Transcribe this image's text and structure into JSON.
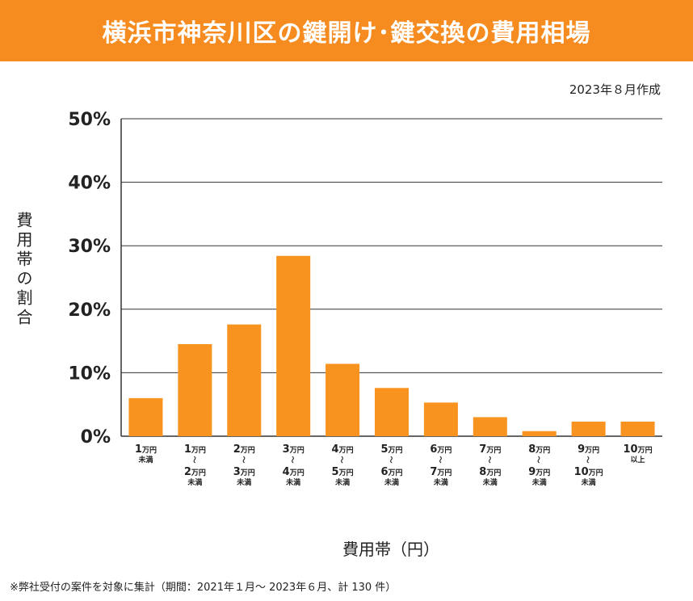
{
  "header": {
    "title": "横浜市神奈川区の鍵開け･鍵交換の費用相場",
    "created": "2023年８月作成"
  },
  "axis": {
    "ylabel": "費用帯の割合",
    "xlabel": "費用帯（円）"
  },
  "footnote": "※弊社受付の案件を対象に集計（期間：2021年１月～ 2023年６月、計 130 件）",
  "colors": {
    "bar": "#f7931e",
    "banner": "#f68b1f",
    "grid": "#333333"
  },
  "chart_data": {
    "type": "bar",
    "title": "横浜市神奈川区の鍵開け･鍵交換の費用相場",
    "xlabel": "費用帯（円）",
    "ylabel": "費用帯の割合",
    "ylim": [
      0,
      50
    ],
    "yticks": [
      "0%",
      "10%",
      "20%",
      "30%",
      "40%",
      "50%"
    ],
    "grid": true,
    "categories": [
      "1万円未満",
      "1万円～2万円未満",
      "2万円～3万円未満",
      "3万円～4万円未満",
      "4万円～5万円未満",
      "5万円～6万円未満",
      "6万円～7万円未満",
      "7万円～8万円未満",
      "8万円～9万円未満",
      "9万円～10万円未満",
      "10万円以上"
    ],
    "category_labels": [
      [
        {
          "n": "1",
          "u": "万円"
        },
        {
          "s": "未満"
        }
      ],
      [
        {
          "n": "1",
          "u": "万円"
        },
        {
          "t": "〜"
        },
        {
          "n": "2",
          "u": "万円"
        },
        {
          "s": "未満"
        }
      ],
      [
        {
          "n": "2",
          "u": "万円"
        },
        {
          "t": "〜"
        },
        {
          "n": "3",
          "u": "万円"
        },
        {
          "s": "未満"
        }
      ],
      [
        {
          "n": "3",
          "u": "万円"
        },
        {
          "t": "〜"
        },
        {
          "n": "4",
          "u": "万円"
        },
        {
          "s": "未満"
        }
      ],
      [
        {
          "n": "4",
          "u": "万円"
        },
        {
          "t": "〜"
        },
        {
          "n": "5",
          "u": "万円"
        },
        {
          "s": "未満"
        }
      ],
      [
        {
          "n": "5",
          "u": "万円"
        },
        {
          "t": "〜"
        },
        {
          "n": "6",
          "u": "万円"
        },
        {
          "s": "未満"
        }
      ],
      [
        {
          "n": "6",
          "u": "万円"
        },
        {
          "t": "〜"
        },
        {
          "n": "7",
          "u": "万円"
        },
        {
          "s": "未満"
        }
      ],
      [
        {
          "n": "7",
          "u": "万円"
        },
        {
          "t": "〜"
        },
        {
          "n": "8",
          "u": "万円"
        },
        {
          "s": "未満"
        }
      ],
      [
        {
          "n": "8",
          "u": "万円"
        },
        {
          "t": "〜"
        },
        {
          "n": "9",
          "u": "万円"
        },
        {
          "s": "未満"
        }
      ],
      [
        {
          "n": "9",
          "u": "万円"
        },
        {
          "t": "〜"
        },
        {
          "n": "10",
          "u": "万円"
        },
        {
          "s": "未満"
        }
      ],
      [
        {
          "n": "10",
          "u": "万円"
        },
        {
          "s": "以上"
        }
      ]
    ],
    "values": [
      6.0,
      14.5,
      17.6,
      28.4,
      11.4,
      7.6,
      5.3,
      3.0,
      0.8,
      2.3,
      2.3
    ]
  }
}
